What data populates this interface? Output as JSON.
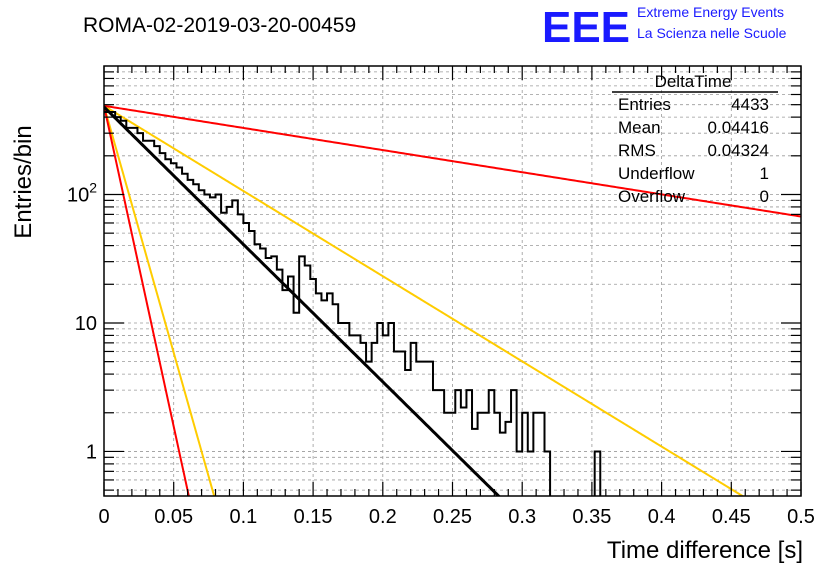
{
  "chart_data": {
    "type": "line",
    "title": "ROMA-02-2019-03-20-00459",
    "xlabel": "Time difference [s]",
    "ylabel": "Entries/bin",
    "xlim": [
      0,
      0.5
    ],
    "ylim": [
      0.45,
      1000
    ],
    "yscale": "log",
    "grid": true,
    "x_ticks": [
      0,
      0.05,
      0.1,
      0.15,
      0.2,
      0.25,
      0.3,
      0.35,
      0.4,
      0.45,
      0.5
    ],
    "x_tick_labels": [
      "0",
      "0.05",
      "0.1",
      "0.15",
      "0.2",
      "0.25",
      "0.3",
      "0.35",
      "0.4",
      "0.45",
      "0.5"
    ],
    "y_major_ticks": [
      1,
      10,
      100
    ],
    "y_tick_labels": [
      "1",
      "10",
      "10^2"
    ],
    "stats_box": {
      "name": "DeltaTime",
      "rows": [
        {
          "label": "Entries",
          "value": "4433"
        },
        {
          "label": "Mean",
          "value": "0.04416"
        },
        {
          "label": "RMS",
          "value": "0.04324"
        },
        {
          "label": "Underflow",
          "value": "1"
        },
        {
          "label": "Overflow",
          "value": "0"
        }
      ]
    },
    "histogram": {
      "bin_width": 0.004,
      "x_start": 0,
      "values": [
        438,
        438,
        400,
        375,
        330,
        330,
        300,
        262,
        262,
        238,
        210,
        188,
        175,
        162,
        145,
        130,
        120,
        108,
        100,
        95,
        100,
        72,
        80,
        90,
        70,
        60,
        52,
        41,
        38,
        32,
        33,
        26,
        18,
        23,
        12,
        33,
        28,
        22,
        17,
        15,
        17,
        14,
        10,
        10,
        8,
        8,
        7,
        5,
        7,
        10,
        8,
        10,
        6,
        6,
        4.3,
        7,
        5,
        5,
        5,
        3,
        3,
        2,
        2,
        3,
        2.2,
        3,
        1.5,
        2,
        2,
        3,
        2,
        1.4,
        1.7,
        3,
        1,
        2,
        1,
        2,
        2,
        1,
        0,
        0,
        0,
        0,
        0,
        0,
        0,
        0,
        1,
        0
      ]
    },
    "series": [
      {
        "role": "fit",
        "A": 480,
        "tau": 0.0406,
        "color": "#000000"
      },
      {
        "role": "curve",
        "A": 490,
        "tau": 0.0655,
        "color": "#ffcc00",
        "x_end": 0.5
      },
      {
        "role": "curve",
        "A": 490,
        "tau": 0.252,
        "color": "#ff0000",
        "x_end": 0.5
      },
      {
        "role": "curve",
        "A": 490,
        "tau": 0.0113,
        "color": "#ffcc00",
        "x_end": 0.5
      },
      {
        "role": "curve",
        "A": 490,
        "tau": 0.0087,
        "color": "#ff0000",
        "x_end": 0.5
      }
    ]
  },
  "branding": {
    "logo": "EEE",
    "line1": "Extreme Energy Events",
    "line2": "La Scienza nelle Scuole"
  }
}
